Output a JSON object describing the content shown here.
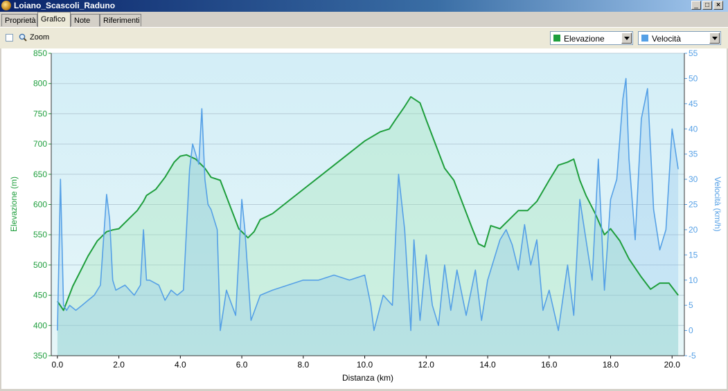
{
  "window": {
    "title": "Loiano_Scascoli_Raduno"
  },
  "tabs": [
    {
      "label": "Proprietà",
      "active": false
    },
    {
      "label": "Grafico",
      "active": true
    },
    {
      "label": "Note",
      "active": false
    },
    {
      "label": "Riferimenti",
      "active": false
    }
  ],
  "toolbar": {
    "zoom_label": "Zoom",
    "zoom_checked": false,
    "left_select": {
      "value": "Elevazione",
      "color": "#1e9e3c"
    },
    "right_select": {
      "value": "Velocità",
      "color": "#55a0e6"
    }
  },
  "icons": {
    "zoom": "magnifier-icon",
    "app": "app-icon"
  },
  "chart_data": {
    "type": "line",
    "xlabel": "Distanza  (km)",
    "ylabel_left": "Elevazione (m)",
    "ylabel_right": "Velocità (km/h)",
    "xlim": [
      -0.2,
      20.4
    ],
    "ylim_left": [
      350,
      850
    ],
    "ylim_right": [
      -5,
      55
    ],
    "x_ticks": [
      "0.0",
      "2.0",
      "4.0",
      "6.0",
      "8.0",
      "10.0",
      "12.0",
      "14.0",
      "16.0",
      "18.0",
      "20.0"
    ],
    "y_left_ticks": [
      "350",
      "400",
      "450",
      "500",
      "550",
      "600",
      "650",
      "700",
      "750",
      "800",
      "850"
    ],
    "y_right_ticks": [
      "-5",
      "0",
      "5",
      "10",
      "15",
      "20",
      "25",
      "30",
      "35",
      "40",
      "45",
      "50",
      "55"
    ],
    "grid": true,
    "series": [
      {
        "axis": "left",
        "color": "#1e9e3c",
        "x": [
          0,
          0.2,
          0.5,
          0.8,
          1.0,
          1.3,
          1.6,
          1.8,
          2.0,
          2.3,
          2.6,
          2.8,
          2.9,
          3.2,
          3.5,
          3.8,
          4.0,
          4.2,
          4.5,
          4.8,
          5.0,
          5.3,
          5.6,
          5.9,
          6.2,
          6.4,
          6.6,
          6.8,
          7.0,
          7.5,
          8.0,
          8.5,
          9.0,
          9.5,
          10.0,
          10.5,
          10.8,
          11.0,
          11.3,
          11.5,
          11.8,
          12.0,
          12.3,
          12.6,
          12.9,
          13.2,
          13.5,
          13.7,
          13.9,
          14.1,
          14.4,
          14.7,
          15.0,
          15.3,
          15.6,
          16.0,
          16.3,
          16.6,
          16.8,
          17.0,
          17.2,
          17.5,
          17.8,
          18.0,
          18.3,
          18.6,
          19.0,
          19.3,
          19.6,
          19.9,
          20.2
        ],
        "y": [
          440,
          425,
          465,
          495,
          515,
          540,
          555,
          558,
          560,
          575,
          590,
          605,
          615,
          625,
          645,
          670,
          680,
          682,
          675,
          660,
          645,
          640,
          600,
          560,
          545,
          555,
          575,
          580,
          585,
          605,
          625,
          645,
          665,
          685,
          705,
          720,
          725,
          740,
          762,
          778,
          768,
          740,
          700,
          660,
          640,
          600,
          560,
          535,
          530,
          565,
          560,
          575,
          590,
          590,
          605,
          640,
          665,
          670,
          675,
          640,
          615,
          585,
          550,
          560,
          540,
          510,
          480,
          460,
          470,
          470,
          450
        ]
      },
      {
        "axis": "right",
        "color": "#55a0e6",
        "x": [
          0,
          0.1,
          0.2,
          0.3,
          0.4,
          0.6,
          0.8,
          1.0,
          1.2,
          1.4,
          1.6,
          1.7,
          1.8,
          1.9,
          2.2,
          2.5,
          2.7,
          2.8,
          2.9,
          3.0,
          3.3,
          3.5,
          3.7,
          3.9,
          4.1,
          4.3,
          4.4,
          4.6,
          4.7,
          4.8,
          4.9,
          5.0,
          5.2,
          5.3,
          5.5,
          5.8,
          6.0,
          6.1,
          6.3,
          6.6,
          7.0,
          7.5,
          8.0,
          8.5,
          9.0,
          9.5,
          10.0,
          10.2,
          10.3,
          10.6,
          10.9,
          11.1,
          11.3,
          11.5,
          11.6,
          11.8,
          12.0,
          12.2,
          12.4,
          12.6,
          12.8,
          13.0,
          13.3,
          13.6,
          13.8,
          14.0,
          14.2,
          14.4,
          14.6,
          14.8,
          15.0,
          15.2,
          15.4,
          15.6,
          15.8,
          16.0,
          16.3,
          16.6,
          16.8,
          17.0,
          17.2,
          17.4,
          17.6,
          17.8,
          18.0,
          18.2,
          18.4,
          18.5,
          18.6,
          18.8,
          19.0,
          19.2,
          19.4,
          19.6,
          19.8,
          20.0,
          20.2
        ],
        "y": [
          0,
          30,
          5,
          4,
          5,
          4,
          5,
          6,
          7,
          9,
          27,
          22,
          10,
          8,
          9,
          7,
          9,
          20,
          10,
          10,
          9,
          6,
          8,
          7,
          8,
          32,
          37,
          33,
          44,
          30,
          25,
          24,
          20,
          0,
          8,
          3,
          26,
          20,
          2,
          7,
          8,
          9,
          10,
          10,
          11,
          10,
          11,
          5,
          0,
          7,
          5,
          31,
          20,
          0,
          18,
          2,
          15,
          5,
          1,
          13,
          4,
          12,
          3,
          12,
          2,
          10,
          14,
          18,
          20,
          17,
          12,
          21,
          13,
          18,
          4,
          8,
          0,
          13,
          3,
          26,
          18,
          10,
          34,
          8,
          26,
          30,
          46,
          50,
          34,
          18,
          42,
          48,
          24,
          16,
          20,
          40,
          32
        ]
      }
    ]
  }
}
